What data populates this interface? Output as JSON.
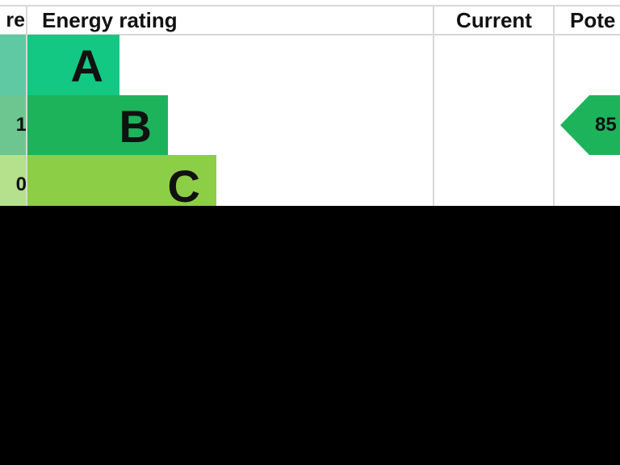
{
  "chart_data": {
    "type": "table",
    "headers": {
      "score": "re",
      "rating": "Energy rating",
      "current": "Current",
      "potential": "Pote"
    },
    "bands": [
      {
        "letter": "A",
        "score_label": "",
        "color": "#12c882",
        "score_color": "#5fc9a4"
      },
      {
        "letter": "B",
        "score_label": "1",
        "color": "#1db35b",
        "score_color": "#6dc58f"
      },
      {
        "letter": "C",
        "score_label": "0",
        "color": "#8dce47",
        "score_color": "#b5e08c"
      }
    ],
    "current": null,
    "potential": {
      "value": "85",
      "band": "B",
      "color": "#1db35b"
    }
  }
}
